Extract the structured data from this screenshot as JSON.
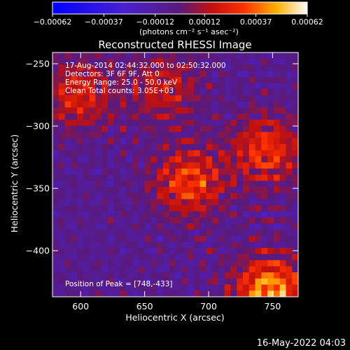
{
  "chart_data": {
    "type": "heatmap",
    "title": "Reconstructed RHESSI Image",
    "xlabel": "Heliocentric X (arcsec)",
    "ylabel": "Heliocentric Y (arcsec)",
    "xlim": [
      578,
      770
    ],
    "ylim": [
      -437,
      -241
    ],
    "x_ticks": [
      600,
      650,
      700,
      750
    ],
    "y_ticks": [
      -250,
      -300,
      -350,
      -400
    ],
    "colorbar": {
      "min": -0.00062,
      "max": 0.00062,
      "ticks": [
        -0.00062,
        -0.00037,
        -0.00012,
        0.00012,
        0.00037,
        0.00062
      ],
      "tick_labels": [
        "-0.00062",
        "-0.00037",
        "-0.00012",
        "0.00012",
        "0.00037",
        "0.00062"
      ],
      "units_label": "(photons cm⁻² s⁻¹ asec⁻²)"
    },
    "annotations": [
      "17-Aug-2014 02:44:32.000 to 02:50:32.000",
      "Detectors: 3F 6F 9F, Att 0",
      "Energy Range: 25.0 - 50.0 keV",
      "Clean     Total counts: 3.05E+03"
    ],
    "peak_label": "Position of Peak = [748,-433]",
    "peak": [
      748,
      -433
    ],
    "sources": [
      {
        "x": 748,
        "y": -433,
        "strength": 1.0
      },
      {
        "x": 685,
        "y": -345,
        "strength": 0.7
      },
      {
        "x": 745,
        "y": -320,
        "strength": 0.65
      },
      {
        "x": 598,
        "y": -275,
        "strength": 0.55
      },
      {
        "x": 665,
        "y": -270,
        "strength": 0.45
      }
    ]
  },
  "footer_timestamp": "16-May-2022 04:03"
}
